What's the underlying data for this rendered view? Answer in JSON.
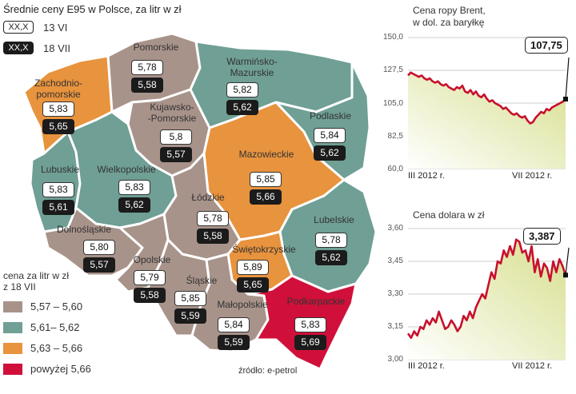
{
  "header": {
    "title": "Średnie ceny  E95 w Polsce, za litr w zł",
    "legend": [
      {
        "sample": "XX,X",
        "label": "13 VI"
      },
      {
        "sample": "XX,X",
        "label": "18 VII"
      }
    ]
  },
  "regions": [
    {
      "name": "Pomorskie",
      "june": "5,78",
      "july": "5,58",
      "color": "#a8938a"
    },
    {
      "name": "Warmińsko-\nMazurskie",
      "june": "5,82",
      "july": "5,62",
      "color": "#6f9f95"
    },
    {
      "name": "Zachodnio-\npomorskie",
      "june": "5,83",
      "july": "5,65",
      "color": "#e8933d"
    },
    {
      "name": "Kujawsko-\n-Pomorskie",
      "june": "5,8",
      "july": "5,57",
      "color": "#a8938a"
    },
    {
      "name": "Podlaskie",
      "june": "5,84",
      "july": "5,62",
      "color": "#6f9f95"
    },
    {
      "name": "Mazowieckie",
      "june": "5,85",
      "july": "5,66",
      "color": "#e8933d"
    },
    {
      "name": "Lubuskie",
      "june": "5,83",
      "july": "5,61",
      "color": "#6f9f95"
    },
    {
      "name": "Wielkopolskie",
      "june": "5,83",
      "july": "5,62",
      "color": "#6f9f95"
    },
    {
      "name": "Łódzkie",
      "june": "5,78",
      "july": "5,58",
      "color": "#a8938a"
    },
    {
      "name": "Lubelskie",
      "june": "5,78",
      "july": "5,62",
      "color": "#6f9f95"
    },
    {
      "name": "Dolnośląskie",
      "june": "5,80",
      "july": "5,57",
      "color": "#a8938a"
    },
    {
      "name": "Świętokrzyskie",
      "june": "5,89",
      "july": "5,65",
      "color": "#e8933d"
    },
    {
      "name": "Opolskie",
      "june": "5,79",
      "july": "5,58",
      "color": "#a8938a"
    },
    {
      "name": "Śląskie",
      "june": "5,85",
      "july": "5,59",
      "color": "#a8938a"
    },
    {
      "name": "Małopolskie",
      "june": "5,84",
      "july": "5,59",
      "color": "#a8938a"
    },
    {
      "name": "Podkarpackie",
      "june": "5,83",
      "july": "5,69",
      "color": "#d0103a"
    }
  ],
  "scale": {
    "title": "cena za litr w zł\nz 18 VII",
    "items": [
      {
        "label": "5,57 – 5,60",
        "color": "#a8938a"
      },
      {
        "label": "5,61– 5,62",
        "color": "#6f9f95"
      },
      {
        "label": "5,63 – 5,66",
        "color": "#e8933d"
      },
      {
        "label": "powyżej 5,66",
        "color": "#d0103a"
      }
    ]
  },
  "source": "źródło: e-petrol",
  "chart_data": [
    {
      "type": "line",
      "title": "Cena ropy Brent,\nw dol. za baryłkę",
      "ylim": [
        60.0,
        150.0
      ],
      "yticks": [
        "150,0",
        "127,5",
        "105,0",
        "82,5",
        "60,0"
      ],
      "xticks": [
        "III 2012 r.",
        "VII 2012 r."
      ],
      "last_value_label": "107,75",
      "series": [
        {
          "name": "Brent",
          "values": [
            124,
            126,
            125,
            124,
            123,
            124,
            122,
            121,
            122,
            120,
            119,
            120,
            118,
            117,
            118,
            116,
            115,
            114,
            116,
            115,
            117,
            113,
            112,
            114,
            111,
            113,
            110,
            109,
            111,
            108,
            106,
            107,
            105,
            104,
            103,
            101,
            102,
            100,
            98,
            97,
            98,
            96,
            95,
            96,
            93,
            91,
            92,
            95,
            97,
            99,
            98,
            101,
            100,
            102,
            103,
            104,
            105,
            106,
            107.75
          ]
        }
      ]
    },
    {
      "type": "line",
      "title": "Cena dolara w zł",
      "ylim": [
        3.0,
        3.6
      ],
      "yticks": [
        "3,60",
        "3,45",
        "3,30",
        "3,15",
        "3,00"
      ],
      "xticks": [
        "III 2012 r.",
        "VII 2012 r."
      ],
      "last_value_label": "3,387",
      "series": [
        {
          "name": "USD/PLN",
          "values": [
            3.12,
            3.1,
            3.13,
            3.11,
            3.15,
            3.14,
            3.18,
            3.16,
            3.19,
            3.17,
            3.22,
            3.18,
            3.14,
            3.15,
            3.18,
            3.16,
            3.13,
            3.15,
            3.2,
            3.18,
            3.22,
            3.19,
            3.24,
            3.27,
            3.3,
            3.28,
            3.34,
            3.4,
            3.37,
            3.45,
            3.44,
            3.5,
            3.47,
            3.52,
            3.48,
            3.55,
            3.54,
            3.49,
            3.5,
            3.45,
            3.52,
            3.4,
            3.46,
            3.38,
            3.44,
            3.42,
            3.36,
            3.45,
            3.4,
            3.46,
            3.43,
            3.387
          ]
        }
      ]
    }
  ]
}
